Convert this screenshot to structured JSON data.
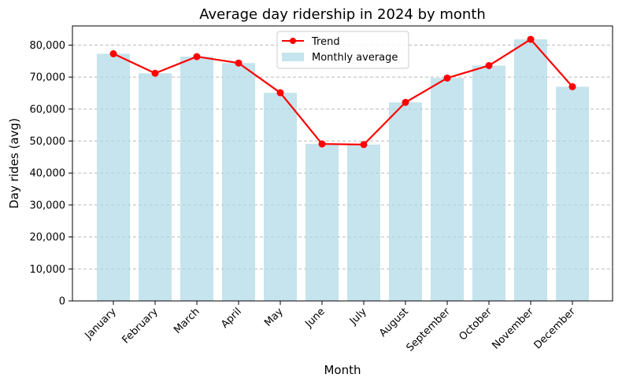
{
  "chart_data": {
    "type": "bar",
    "title": "Average day ridership in 2024 by month",
    "xlabel": "Month",
    "ylabel": "Day rides (avg)",
    "ylim": [
      0,
      86000
    ],
    "yticks": [
      0,
      10000,
      20000,
      30000,
      40000,
      50000,
      60000,
      70000,
      80000
    ],
    "ytick_labels": [
      "0",
      "10,000",
      "20,000",
      "30,000",
      "40,000",
      "50,000",
      "60,000",
      "70,000",
      "80,000"
    ],
    "categories": [
      "January",
      "February",
      "March",
      "April",
      "May",
      "June",
      "July",
      "August",
      "September",
      "October",
      "November",
      "December"
    ],
    "series": [
      {
        "name": "Monthly average",
        "kind": "bar",
        "color": "#add8e6",
        "values": [
          77300,
          71200,
          76400,
          74400,
          65100,
          49100,
          48900,
          62100,
          69700,
          73600,
          81800,
          67000
        ]
      },
      {
        "name": "Trend",
        "kind": "line",
        "color": "#ff0000",
        "values": [
          77300,
          71200,
          76400,
          74400,
          65100,
          49100,
          48900,
          62100,
          69700,
          73600,
          81800,
          67000
        ]
      }
    ],
    "grid": "y-dashed",
    "legend_position": "top-center"
  }
}
